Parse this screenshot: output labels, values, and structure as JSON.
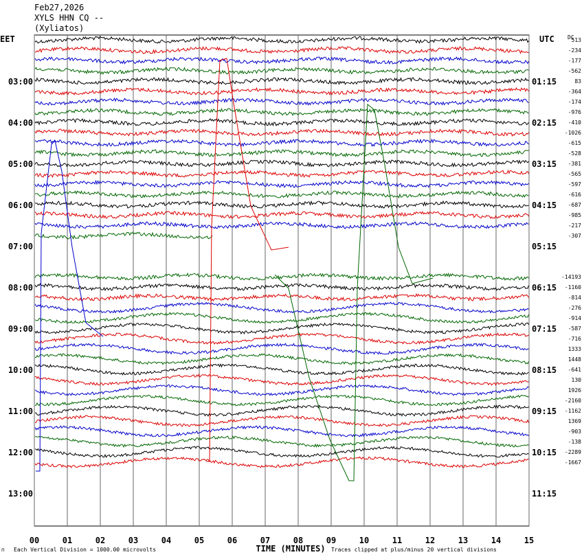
{
  "header": {
    "date": "Feb27,2026",
    "station": "XYLS HHN CQ --",
    "location": "(Xyliatos)"
  },
  "colors": {
    "black": "#000000",
    "red": "#dd0000",
    "blue": "#0000cc",
    "green": "#006600",
    "grid": "#666666"
  },
  "chart_data": {
    "type": "line",
    "left_timezone": "EET",
    "right_timezone": "UTC",
    "dc_label": "DC",
    "xlabel": "TIME (MINUTES)",
    "xlim": [
      0,
      15
    ],
    "x_ticks": [
      "00",
      "01",
      "02",
      "03",
      "04",
      "05",
      "06",
      "07",
      "08",
      "09",
      "10",
      "11",
      "12",
      "13",
      "14",
      "15"
    ],
    "y_labels_left": [
      "03:00",
      "04:00",
      "05:00",
      "06:00",
      "07:00",
      "08:00",
      "09:00",
      "10:00",
      "11:00",
      "12:00",
      "13:00"
    ],
    "y_labels_right": [
      "01:15",
      "02:15",
      "03:15",
      "04:15",
      "05:15",
      "06:15",
      "07:15",
      "08:15",
      "09:15",
      "10:15",
      "11:15"
    ],
    "traces_per_hour": 4,
    "rows_before_first_label": 4,
    "dc_offsets": [
      "513",
      "-234",
      "-177",
      "-562",
      "83",
      "-364",
      "-174",
      "-976",
      "-410",
      "-1026",
      "-615",
      "-528",
      "-381",
      "-565",
      "-597",
      "-616",
      "-687",
      "-985",
      "-217",
      "-307",
      "",
      "",
      "",
      "-14193",
      "-1160",
      "-814",
      "-276",
      "-914",
      "-587",
      "-716",
      "1333",
      "1448",
      "-641",
      "130",
      "1926",
      "-2160",
      "-1162",
      "1369",
      "-903",
      "-138",
      "-2289",
      "-1667"
    ],
    "trace_color_cycle": [
      "black",
      "red",
      "blue",
      "green"
    ],
    "footer_left": "Each Vertical Division = 1000.00 microvolts",
    "footer_right": "Traces clipped at plus/minus 20 vertical divisions",
    "footer_mark": "∩"
  }
}
